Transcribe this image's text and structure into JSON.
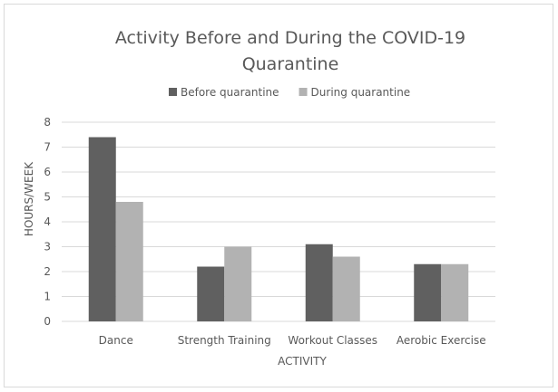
{
  "chart_data": {
    "type": "bar",
    "title_lines": [
      "Activity Before and During the COVID-19",
      "Quarantine"
    ],
    "xlabel": "ACTIVITY",
    "ylabel": "HOURS/WEEK",
    "categories": [
      "Dance",
      "Strength Training",
      "Workout Classes",
      "Aerobic Exercise"
    ],
    "series": [
      {
        "name": "Before quarantine",
        "values": [
          7.4,
          2.2,
          3.1,
          2.3
        ],
        "color": "#606060"
      },
      {
        "name": "During quarantine",
        "values": [
          4.8,
          3.0,
          2.6,
          2.3
        ],
        "color": "#b2b2b2"
      }
    ],
    "ylim": [
      0,
      8
    ],
    "yticks": [
      0,
      1,
      2,
      3,
      4,
      5,
      6,
      7,
      8
    ],
    "grid": true,
    "legend": "top"
  }
}
